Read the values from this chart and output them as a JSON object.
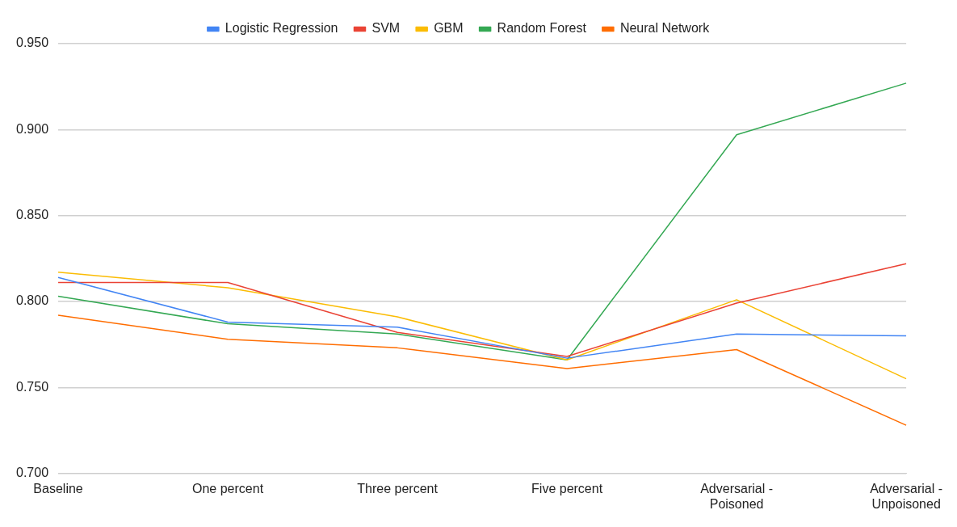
{
  "chart_data": {
    "type": "line",
    "categories": [
      "Baseline",
      "One percent",
      "Three percent",
      "Five percent",
      "Adversarial - Poisoned",
      "Adversarial - Unpoisoned"
    ],
    "series": [
      {
        "name": "Logistic Regression",
        "color": "#4285f4",
        "values": [
          0.814,
          0.788,
          0.785,
          0.767,
          0.781,
          0.78
        ]
      },
      {
        "name": "SVM",
        "color": "#ea4335",
        "values": [
          0.811,
          0.811,
          0.782,
          0.768,
          0.799,
          0.822
        ]
      },
      {
        "name": "GBM",
        "color": "#fbbc04",
        "values": [
          0.817,
          0.808,
          0.791,
          0.766,
          0.801,
          0.755
        ]
      },
      {
        "name": "Random Forest",
        "color": "#34a853",
        "values": [
          0.803,
          0.787,
          0.781,
          0.766,
          0.897,
          0.927
        ]
      },
      {
        "name": "Neural Network",
        "color": "#ff6d01",
        "values": [
          0.792,
          0.778,
          0.773,
          0.761,
          0.772,
          0.728
        ]
      }
    ],
    "ylim": [
      0.7,
      0.95
    ],
    "yticks": [
      {
        "value": 0.7,
        "label": "0.700"
      },
      {
        "value": 0.75,
        "label": "0.750"
      },
      {
        "value": 0.8,
        "label": "0.800"
      },
      {
        "value": 0.85,
        "label": "0.850"
      },
      {
        "value": 0.9,
        "label": "0.900"
      },
      {
        "value": 0.95,
        "label": "0.950"
      }
    ],
    "grid": "y",
    "legend": "top",
    "marker": "none",
    "line_style": "solid"
  }
}
